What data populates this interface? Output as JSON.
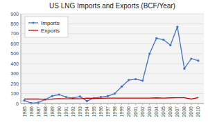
{
  "chart_data": {
    "type": "line",
    "title": "US LNG Imports and Exports (BCF/Year)",
    "x": [
      1985,
      1986,
      1987,
      1988,
      1989,
      1990,
      1991,
      1992,
      1993,
      1994,
      1995,
      1996,
      1997,
      1998,
      1999,
      2000,
      2001,
      2002,
      2003,
      2004,
      2005,
      2006,
      2007,
      2008,
      2009,
      2010
    ],
    "series": [
      {
        "name": "Imports",
        "color": "#4472C4",
        "marker": "circle",
        "values": [
          30,
          5,
          10,
          40,
          75,
          90,
          65,
          55,
          70,
          25,
          55,
          65,
          75,
          100,
          170,
          235,
          245,
          230,
          500,
          655,
          640,
          585,
          770,
          350,
          450,
          430
        ]
      },
      {
        "name": "Exports",
        "color": "#CC0000",
        "marker": "none",
        "values": [
          45,
          45,
          45,
          43,
          45,
          50,
          48,
          50,
          48,
          55,
          52,
          53,
          55,
          55,
          55,
          55,
          55,
          55,
          55,
          57,
          55,
          57,
          58,
          58,
          45,
          60
        ]
      }
    ],
    "xlim": [
      1984.5,
      2010.8
    ],
    "xticks": [
      1985,
      1986,
      1987,
      1988,
      1989,
      1990,
      1991,
      1992,
      1993,
      1994,
      1995,
      1996,
      1997,
      1998,
      1999,
      2000,
      2001,
      2002,
      2003,
      2004,
      2005,
      2006,
      2007,
      2008,
      2009,
      2010
    ],
    "ylim": [
      0,
      900
    ],
    "yticks": [
      0,
      100,
      200,
      300,
      400,
      500,
      600,
      700,
      800,
      900
    ],
    "grid": true,
    "legend": "upper left"
  }
}
